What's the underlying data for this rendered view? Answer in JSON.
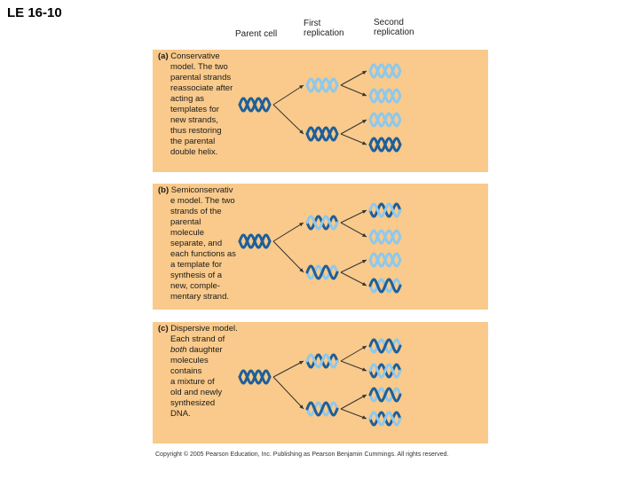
{
  "title": "LE 16-10",
  "columns": {
    "parent": "Parent cell",
    "first": "First\nreplication",
    "second": "Second\nreplication"
  },
  "panels": [
    {
      "label": "(a)",
      "caption_lines": [
        "Conservative",
        "model. The two",
        "parental strands",
        "reassociate after",
        "acting as",
        "templates for",
        "new strands,",
        "thus restoring",
        "the parental",
        "double helix."
      ]
    },
    {
      "label": "(b)",
      "caption_lines": [
        "Semiconservativ",
        "e model. The two",
        "strands of the",
        "parental",
        "molecule",
        "separate, and",
        "each functions as",
        "a template for",
        "synthesis of a",
        "new, comple-",
        "mentary strand."
      ]
    },
    {
      "label": "(c)",
      "caption_lines": [
        "Dispersive model.",
        "Each strand of",
        "both daughter",
        "molecules",
        "contains",
        "a mixture of",
        "old and newly",
        "synthesized",
        "DNA."
      ],
      "italic_word": "both"
    }
  ],
  "colors": {
    "panel": "#f9ca8b",
    "parental_strand": "#1f5f99",
    "new_strand": "#8ec8ec"
  },
  "copyright": "Copyright © 2005 Pearson Education, Inc. Publishing as Pearson Benjamin Cummings. All rights reserved."
}
